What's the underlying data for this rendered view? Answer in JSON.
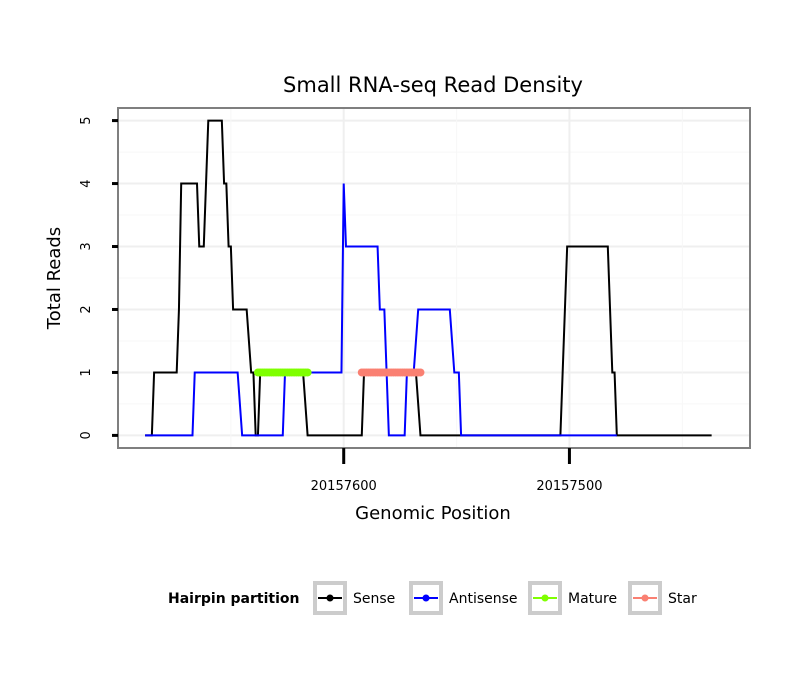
{
  "chart_data": {
    "type": "line",
    "title": "Small RNA-seq Read Density",
    "xlabel": "Genomic Position",
    "ylabel": "Total Reads",
    "xlim": [
      20157700,
      20157420
    ],
    "ylim": [
      -0.2,
      5.2
    ],
    "x_reversed": true,
    "x_ticks": [
      20157600,
      20157500
    ],
    "x_tick_labels": [
      "20157600",
      "20157500"
    ],
    "y_ticks": [
      0,
      1,
      2,
      3,
      4,
      5
    ],
    "y_tick_labels": [
      "0",
      "1",
      "2",
      "3",
      "4",
      "5"
    ],
    "grid": true,
    "legend": {
      "title": "Hairpin partition",
      "position": "bottom",
      "entries": [
        "Sense",
        "Antisense",
        "Mature",
        "Star"
      ]
    },
    "series": [
      {
        "name": "Sense",
        "color": "#000000",
        "points": [
          [
            20157688,
            0
          ],
          [
            20157685,
            0
          ],
          [
            20157684,
            1
          ],
          [
            20157674,
            1
          ],
          [
            20157673,
            2
          ],
          [
            20157672,
            4
          ],
          [
            20157665,
            4
          ],
          [
            20157664,
            3
          ],
          [
            20157662,
            3
          ],
          [
            20157661,
            4
          ],
          [
            20157660,
            5
          ],
          [
            20157654,
            5
          ],
          [
            20157653,
            4
          ],
          [
            20157652,
            4
          ],
          [
            20157651,
            3
          ],
          [
            20157650,
            3
          ],
          [
            20157649,
            2
          ],
          [
            20157643,
            2
          ],
          [
            20157641,
            1
          ],
          [
            20157640,
            1
          ],
          [
            20157639,
            0
          ],
          [
            20157638,
            0
          ],
          [
            20157637,
            1
          ],
          [
            20157618,
            1
          ],
          [
            20157616,
            0
          ],
          [
            20157592,
            0
          ],
          [
            20157591,
            1
          ],
          [
            20157568,
            1
          ],
          [
            20157566,
            0
          ],
          [
            20157504,
            0
          ],
          [
            20157501,
            3
          ],
          [
            20157483,
            3
          ],
          [
            20157481,
            1
          ],
          [
            20157480,
            1
          ],
          [
            20157479,
            0
          ],
          [
            20157437,
            0
          ]
        ]
      },
      {
        "name": "Antisense",
        "color": "#0000ff",
        "points": [
          [
            20157688,
            0
          ],
          [
            20157667,
            0
          ],
          [
            20157666,
            1
          ],
          [
            20157647,
            1
          ],
          [
            20157645,
            0
          ],
          [
            20157627,
            0
          ],
          [
            20157626,
            1
          ],
          [
            20157601,
            1
          ],
          [
            20157600,
            4
          ],
          [
            20157599,
            3
          ],
          [
            20157585,
            3
          ],
          [
            20157584,
            2
          ],
          [
            20157582,
            2
          ],
          [
            20157580,
            0
          ],
          [
            20157573,
            0
          ],
          [
            20157572,
            1
          ],
          [
            20157569,
            1
          ],
          [
            20157567,
            2
          ],
          [
            20157553,
            2
          ],
          [
            20157551,
            1
          ],
          [
            20157549,
            1
          ],
          [
            20157548,
            0
          ],
          [
            20157479,
            0
          ]
        ]
      },
      {
        "name": "Mature",
        "color": "#7fff00",
        "points": [
          [
            20157638,
            1
          ],
          [
            20157637,
            1
          ],
          [
            20157636,
            1
          ],
          [
            20157635,
            1
          ],
          [
            20157634,
            1
          ],
          [
            20157633,
            1
          ],
          [
            20157632,
            1
          ],
          [
            20157631,
            1
          ],
          [
            20157630,
            1
          ],
          [
            20157629,
            1
          ],
          [
            20157628,
            1
          ],
          [
            20157627,
            1
          ],
          [
            20157626,
            1
          ],
          [
            20157625,
            1
          ],
          [
            20157624,
            1
          ],
          [
            20157623,
            1
          ],
          [
            20157622,
            1
          ],
          [
            20157621,
            1
          ],
          [
            20157620,
            1
          ],
          [
            20157619,
            1
          ],
          [
            20157618,
            1
          ],
          [
            20157617,
            1
          ],
          [
            20157616,
            1
          ]
        ]
      },
      {
        "name": "Star",
        "color": "#fa8072",
        "points": [
          [
            20157592,
            1
          ],
          [
            20157591,
            1
          ],
          [
            20157590,
            1
          ],
          [
            20157589,
            1
          ],
          [
            20157588,
            1
          ],
          [
            20157587,
            1
          ],
          [
            20157586,
            1
          ],
          [
            20157585,
            1
          ],
          [
            20157584,
            1
          ],
          [
            20157583,
            1
          ],
          [
            20157582,
            1
          ],
          [
            20157581,
            1
          ],
          [
            20157580,
            1
          ],
          [
            20157579,
            1
          ],
          [
            20157578,
            1
          ],
          [
            20157577,
            1
          ],
          [
            20157576,
            1
          ],
          [
            20157575,
            1
          ],
          [
            20157574,
            1
          ],
          [
            20157573,
            1
          ],
          [
            20157572,
            1
          ],
          [
            20157571,
            1
          ],
          [
            20157570,
            1
          ],
          [
            20157569,
            1
          ],
          [
            20157568,
            1
          ],
          [
            20157567,
            1
          ],
          [
            20157566,
            1
          ]
        ]
      }
    ]
  }
}
